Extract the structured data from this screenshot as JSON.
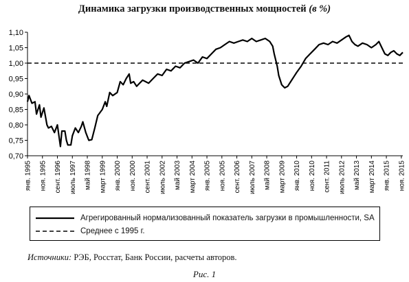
{
  "title": {
    "main": "Динамика загрузки производственных мощностей",
    "unit": "(в %)"
  },
  "chart_data": {
    "type": "line",
    "ylim": [
      0.7,
      1.1
    ],
    "grid": false,
    "legend_position": "bottom",
    "y_ticks": [
      "0,70",
      "0,75",
      "0,80",
      "0,85",
      "0,90",
      "0,95",
      "1,00",
      "1,05",
      "1,10"
    ],
    "x_ticks": [
      {
        "label": "янв. 1995",
        "x": "1995-01"
      },
      {
        "label": "ноя. 1995",
        "x": "1995-11"
      },
      {
        "label": "сент. 1996",
        "x": "1996-09"
      },
      {
        "label": "июль 1997",
        "x": "1997-07"
      },
      {
        "label": "май 1998",
        "x": "1998-05"
      },
      {
        "label": "март 1999",
        "x": "1999-03"
      },
      {
        "label": "янв. 2000",
        "x": "2000-01"
      },
      {
        "label": "ноя. 2000",
        "x": "2000-11"
      },
      {
        "label": "сент. 2001",
        "x": "2001-09"
      },
      {
        "label": "июль 2002",
        "x": "2002-07"
      },
      {
        "label": "май 2003",
        "x": "2003-05"
      },
      {
        "label": "март 2004",
        "x": "2004-03"
      },
      {
        "label": "янв. 2005",
        "x": "2005-01"
      },
      {
        "label": "ноя. 2005",
        "x": "2005-11"
      },
      {
        "label": "сент. 2006",
        "x": "2006-09"
      },
      {
        "label": "июль 2007",
        "x": "2007-07"
      },
      {
        "label": "май 2008",
        "x": "2008-05"
      },
      {
        "label": "март 2009",
        "x": "2009-03"
      },
      {
        "label": "янв. 2010",
        "x": "2010-01"
      },
      {
        "label": "ноя. 2010",
        "x": "2010-11"
      },
      {
        "label": "сент. 2011",
        "x": "2011-09"
      },
      {
        "label": "июль 2012",
        "x": "2012-07"
      },
      {
        "label": "май 2013",
        "x": "2013-05"
      },
      {
        "label": "март 2014",
        "x": "2014-03"
      },
      {
        "label": "янв. 2015",
        "x": "2015-01"
      },
      {
        "label": "ноя. 2015",
        "x": "2015-11"
      }
    ],
    "series": [
      {
        "name": "Агрегированный нормализованный показатель загрузки в промышленности, SA",
        "style": "solid",
        "color": "#000000",
        "points": [
          [
            "1995-01",
            0.875
          ],
          [
            "1995-02",
            0.895
          ],
          [
            "1995-04",
            0.87
          ],
          [
            "1995-06",
            0.875
          ],
          [
            "1995-07",
            0.835
          ],
          [
            "1995-09",
            0.865
          ],
          [
            "1995-10",
            0.825
          ],
          [
            "1995-12",
            0.855
          ],
          [
            "1996-02",
            0.8
          ],
          [
            "1996-03",
            0.79
          ],
          [
            "1996-05",
            0.795
          ],
          [
            "1996-07",
            0.775
          ],
          [
            "1996-09",
            0.8
          ],
          [
            "1996-11",
            0.73
          ],
          [
            "1996-12",
            0.78
          ],
          [
            "1997-02",
            0.78
          ],
          [
            "1997-03",
            0.75
          ],
          [
            "1997-04",
            0.735
          ],
          [
            "1997-06",
            0.735
          ],
          [
            "1997-07",
            0.765
          ],
          [
            "1997-09",
            0.79
          ],
          [
            "1997-11",
            0.775
          ],
          [
            "1998-01",
            0.795
          ],
          [
            "1998-02",
            0.81
          ],
          [
            "1998-04",
            0.775
          ],
          [
            "1998-06",
            0.75
          ],
          [
            "1998-08",
            0.752
          ],
          [
            "1998-10",
            0.79
          ],
          [
            "1998-12",
            0.83
          ],
          [
            "1999-03",
            0.85
          ],
          [
            "1999-05",
            0.875
          ],
          [
            "1999-06",
            0.86
          ],
          [
            "1999-08",
            0.905
          ],
          [
            "1999-10",
            0.895
          ],
          [
            "2000-01",
            0.905
          ],
          [
            "2000-03",
            0.94
          ],
          [
            "2000-05",
            0.93
          ],
          [
            "2000-07",
            0.95
          ],
          [
            "2000-09",
            0.965
          ],
          [
            "2000-10",
            0.935
          ],
          [
            "2000-12",
            0.94
          ],
          [
            "2001-02",
            0.925
          ],
          [
            "2001-04",
            0.935
          ],
          [
            "2001-06",
            0.945
          ],
          [
            "2001-08",
            0.94
          ],
          [
            "2001-10",
            0.935
          ],
          [
            "2002-01",
            0.95
          ],
          [
            "2002-04",
            0.965
          ],
          [
            "2002-07",
            0.96
          ],
          [
            "2002-10",
            0.98
          ],
          [
            "2003-01",
            0.975
          ],
          [
            "2003-04",
            0.99
          ],
          [
            "2003-07",
            0.985
          ],
          [
            "2003-10",
            1.0
          ],
          [
            "2004-01",
            1.005
          ],
          [
            "2004-04",
            1.01
          ],
          [
            "2004-07",
            1.0
          ],
          [
            "2004-10",
            1.02
          ],
          [
            "2005-01",
            1.015
          ],
          [
            "2005-04",
            1.03
          ],
          [
            "2005-07",
            1.045
          ],
          [
            "2005-10",
            1.05
          ],
          [
            "2006-01",
            1.06
          ],
          [
            "2006-04",
            1.07
          ],
          [
            "2006-07",
            1.065
          ],
          [
            "2006-10",
            1.07
          ],
          [
            "2007-01",
            1.075
          ],
          [
            "2007-04",
            1.07
          ],
          [
            "2007-07",
            1.08
          ],
          [
            "2007-10",
            1.07
          ],
          [
            "2008-01",
            1.075
          ],
          [
            "2008-04",
            1.08
          ],
          [
            "2008-07",
            1.07
          ],
          [
            "2008-09",
            1.055
          ],
          [
            "2008-10",
            1.03
          ],
          [
            "2008-12",
            0.99
          ],
          [
            "2009-01",
            0.96
          ],
          [
            "2009-03",
            0.93
          ],
          [
            "2009-05",
            0.92
          ],
          [
            "2009-07",
            0.925
          ],
          [
            "2009-09",
            0.94
          ],
          [
            "2009-11",
            0.955
          ],
          [
            "2010-01",
            0.97
          ],
          [
            "2010-04",
            0.99
          ],
          [
            "2010-07",
            1.015
          ],
          [
            "2010-10",
            1.03
          ],
          [
            "2011-01",
            1.045
          ],
          [
            "2011-04",
            1.06
          ],
          [
            "2011-07",
            1.065
          ],
          [
            "2011-10",
            1.06
          ],
          [
            "2012-01",
            1.07
          ],
          [
            "2012-04",
            1.065
          ],
          [
            "2012-07",
            1.075
          ],
          [
            "2012-10",
            1.085
          ],
          [
            "2012-12",
            1.09
          ],
          [
            "2013-02",
            1.07
          ],
          [
            "2013-04",
            1.06
          ],
          [
            "2013-06",
            1.055
          ],
          [
            "2013-09",
            1.065
          ],
          [
            "2013-12",
            1.06
          ],
          [
            "2014-03",
            1.05
          ],
          [
            "2014-06",
            1.06
          ],
          [
            "2014-08",
            1.07
          ],
          [
            "2014-10",
            1.05
          ],
          [
            "2014-12",
            1.03
          ],
          [
            "2015-02",
            1.025
          ],
          [
            "2015-04",
            1.035
          ],
          [
            "2015-06",
            1.04
          ],
          [
            "2015-08",
            1.03
          ],
          [
            "2015-10",
            1.025
          ],
          [
            "2015-12",
            1.035
          ]
        ]
      },
      {
        "name": "Среднее с 1995 г.",
        "style": "dashed",
        "color": "#000000",
        "points": [
          [
            "1995-01",
            1.0
          ],
          [
            "2015-12",
            1.0
          ]
        ]
      }
    ]
  },
  "source": {
    "label": "Источники:",
    "text": "РЭБ, Росстат, Банк России, расчеты авторов."
  },
  "figure_caption": "Рис. 1"
}
